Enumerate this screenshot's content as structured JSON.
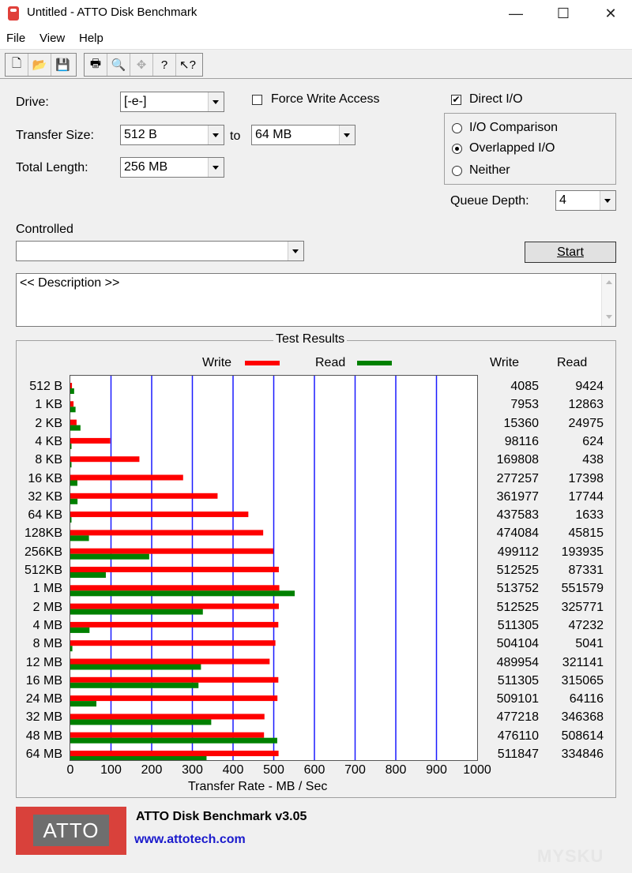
{
  "window": {
    "title": "Untitled - ATTO Disk Benchmark",
    "min": "—",
    "max": "☐",
    "close": "✕"
  },
  "menu": [
    "File",
    "View",
    "Help"
  ],
  "toolbar": [
    "🗋",
    "📂",
    "💾",
    "🖶",
    "🔍",
    "✥",
    "?",
    "↖?"
  ],
  "settings": {
    "drive_label": "Drive:",
    "drive_value": "[-e-]",
    "transfer_label": "Transfer Size:",
    "transfer_from": "512 B",
    "to_label": "to",
    "transfer_to": "64 MB",
    "length_label": "Total Length:",
    "length_value": "256 MB",
    "force_write": "Force Write Access",
    "direct_io": "Direct I/O",
    "io_comparison": "I/O Comparison",
    "overlapped_io": "Overlapped I/O",
    "neither": "Neither",
    "queue_label": "Queue Depth:",
    "queue_value": "4",
    "controlled_label": "Controlled",
    "controlled_value": "",
    "start_label": "Start",
    "description": "<< Description >>"
  },
  "chart_data": {
    "type": "bar",
    "title": "Test Results",
    "xlabel": "Transfer Rate - MB / Sec",
    "xlim": [
      0,
      1000
    ],
    "xticks": [
      0,
      100,
      200,
      300,
      400,
      500,
      600,
      700,
      800,
      900,
      1000
    ],
    "categories": [
      "512 B",
      "1 KB",
      "2 KB",
      "4 KB",
      "8 KB",
      "16 KB",
      "32 KB",
      "64 KB",
      "128KB",
      "256KB",
      "512KB",
      "1 MB",
      "2 MB",
      "4 MB",
      "8 MB",
      "12 MB",
      "16 MB",
      "24 MB",
      "32 MB",
      "48 MB",
      "64 MB"
    ],
    "series": [
      {
        "name": "Write",
        "color": "#ff0000",
        "values": [
          4085,
          7953,
          15360,
          98116,
          169808,
          277257,
          361977,
          437583,
          474084,
          499112,
          512525,
          513752,
          512525,
          511305,
          504104,
          489954,
          511305,
          509101,
          477218,
          476110,
          511847
        ]
      },
      {
        "name": "Read",
        "color": "#008000",
        "values": [
          9424,
          12863,
          24975,
          624,
          438,
          17398,
          17744,
          1633,
          45815,
          193935,
          87331,
          551579,
          325771,
          47232,
          5041,
          321141,
          315065,
          64116,
          346368,
          508614,
          334846
        ]
      }
    ],
    "table_headers": [
      "Write",
      "Read"
    ]
  },
  "footer": {
    "logo": "ATTO",
    "product": "ATTO Disk Benchmark v3.05",
    "url": "www.attotech.com"
  },
  "watermark": "MYSKU"
}
